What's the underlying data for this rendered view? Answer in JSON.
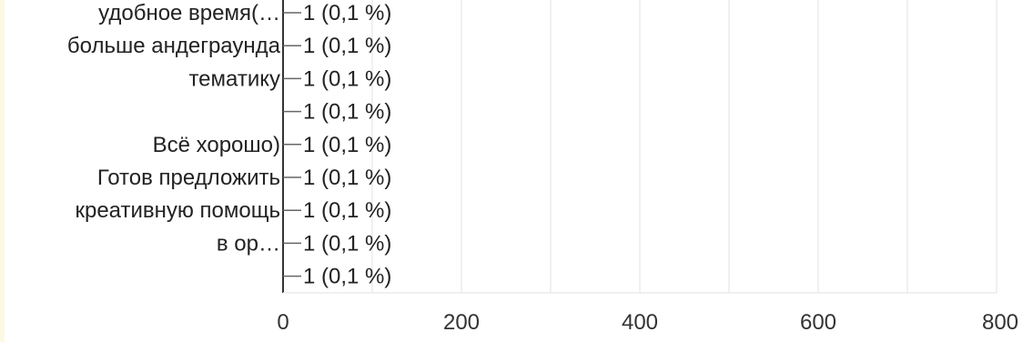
{
  "chart_data": {
    "type": "bar",
    "orientation": "horizontal",
    "categories": [
      "удобное время(…",
      "больше андеграунда",
      "тематику",
      "",
      "Всё хорошо)",
      "Готов предложить",
      "креативную помощь",
      "в ор…",
      ""
    ],
    "values": [
      1,
      1,
      1,
      1,
      1,
      1,
      1,
      1,
      1
    ],
    "data_labels": [
      "1 (0,1 %)",
      "1 (0,1 %)",
      "1 (0,1 %)",
      "1 (0,1 %)",
      "1 (0,1 %)",
      "1 (0,1 %)",
      "1 (0,1 %)",
      "1 (0,1 %)",
      "1 (0,1 %)"
    ],
    "x_ticks": [
      "0",
      "200",
      "400",
      "600",
      "800"
    ],
    "xlim": [
      0,
      800
    ],
    "grid": true,
    "colors": {
      "bar": "#3366cc",
      "axis": "#333333",
      "grid": "#ebebeb",
      "text": "#222222",
      "stripe": "#fbf8e3"
    }
  }
}
